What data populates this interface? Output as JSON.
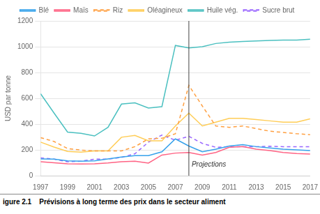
{
  "chart_data": {
    "type": "line",
    "ylabel": "USD par tonne",
    "caption": "igure 2.1    Prévisions à long terme des prix dans le secteur aliment",
    "x": [
      1997,
      1998,
      1999,
      2000,
      2001,
      2002,
      2003,
      2004,
      2005,
      2006,
      2007,
      2008,
      2009,
      2010,
      2011,
      2012,
      2013,
      2014,
      2015,
      2016,
      2017
    ],
    "series": [
      {
        "name": "Blé",
        "line_style": "solid",
        "values": [
          130,
          128,
          115,
          112,
          115,
          130,
          145,
          155,
          155,
          185,
          285,
          230,
          185,
          205,
          230,
          240,
          225,
          215,
          205,
          200,
          195
        ]
      },
      {
        "name": "Maïs",
        "line_style": "solid",
        "values": [
          108,
          100,
          92,
          90,
          92,
          98,
          108,
          112,
          98,
          160,
          175,
          180,
          160,
          180,
          220,
          225,
          205,
          195,
          180,
          172,
          168
        ]
      },
      {
        "name": "Riz",
        "line_style": "dashed",
        "values": [
          295,
          265,
          210,
          198,
          192,
          192,
          192,
          225,
          285,
          290,
          325,
          700,
          540,
          385,
          375,
          385,
          365,
          345,
          335,
          325,
          318
        ]
      },
      {
        "name": "Oléagineux",
        "line_style": "solid",
        "values": [
          260,
          222,
          188,
          182,
          192,
          192,
          298,
          312,
          270,
          270,
          385,
          485,
          385,
          415,
          445,
          445,
          435,
          425,
          415,
          415,
          440
        ]
      },
      {
        "name": "Huile vég.",
        "line_style": "solid",
        "values": [
          635,
          485,
          338,
          328,
          308,
          375,
          555,
          565,
          525,
          535,
          1010,
          990,
          1000,
          1025,
          1035,
          1040,
          1045,
          1048,
          1052,
          1052,
          1058
        ]
      },
      {
        "name": "Sucre brut",
        "line_style": "dashed",
        "values": [
          138,
          128,
          108,
          112,
          128,
          128,
          142,
          170,
          260,
          315,
          275,
          305,
          250,
          220,
          225,
          225,
          225,
          228,
          225,
          225,
          225
        ]
      }
    ],
    "annotations": [
      {
        "text": "Projections",
        "x": 2008,
        "y": 60
      }
    ],
    "xlim": [
      1997,
      2017
    ],
    "xticks": [
      1997,
      1999,
      2001,
      2003,
      2005,
      2007,
      2009,
      2011,
      2013,
      2015,
      2017
    ],
    "ylim": [
      0,
      1200
    ],
    "yticks": [
      0,
      200,
      400,
      600,
      800,
      1000,
      1200
    ],
    "grid": "y",
    "legend": "top"
  }
}
